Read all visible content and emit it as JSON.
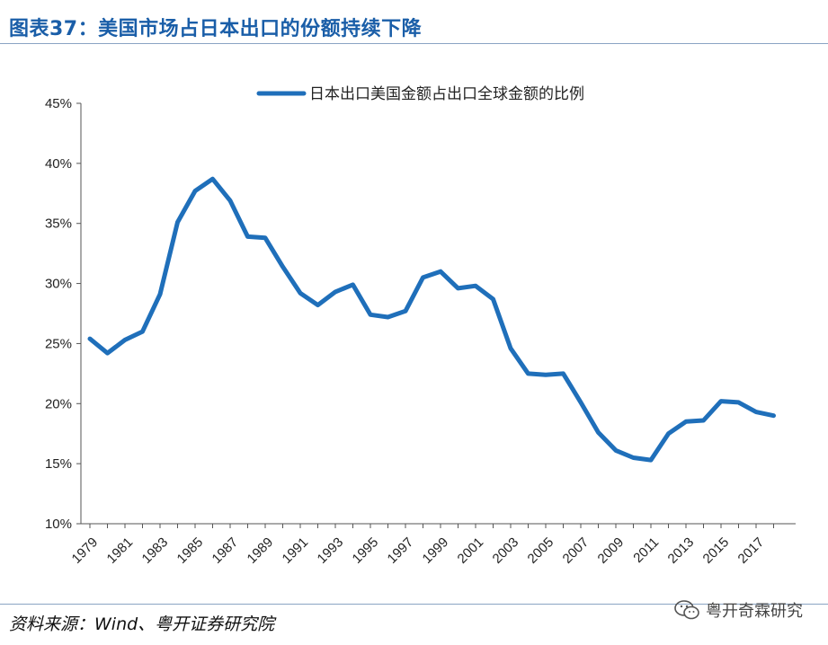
{
  "header": {
    "title": "图表37：美国市场占日本出口的份额持续下降"
  },
  "footer": {
    "source": "资料来源：Wind、粤开证券研究院",
    "watermark": "粤开奇霖研究"
  },
  "chart_data": {
    "type": "line",
    "title": "",
    "xlabel": "",
    "ylabel": "",
    "x": [
      1979,
      1980,
      1981,
      1982,
      1983,
      1984,
      1985,
      1986,
      1987,
      1988,
      1989,
      1990,
      1991,
      1992,
      1993,
      1994,
      1995,
      1996,
      1997,
      1998,
      1999,
      2000,
      2001,
      2002,
      2003,
      2004,
      2005,
      2006,
      2007,
      2008,
      2009,
      2010,
      2011,
      2012,
      2013,
      2014,
      2015,
      2016,
      2017,
      2018
    ],
    "xtick_labels": [
      "1979",
      "1981",
      "1983",
      "1985",
      "1987",
      "1989",
      "1991",
      "1993",
      "1995",
      "1997",
      "1999",
      "2001",
      "2003",
      "2005",
      "2007",
      "2009",
      "2011",
      "2013",
      "2015",
      "2017"
    ],
    "ytick_labels": [
      "10%",
      "15%",
      "20%",
      "25%",
      "30%",
      "35%",
      "40%",
      "45%"
    ],
    "ylim": [
      10,
      45
    ],
    "grid": false,
    "legend_position": "top",
    "series": [
      {
        "name": "日本出口美国金额占出口全球金额的比例",
        "color": "#1f6fba",
        "values": [
          25.4,
          24.2,
          25.3,
          26.0,
          29.1,
          35.1,
          37.7,
          38.7,
          36.9,
          33.9,
          33.8,
          31.4,
          29.2,
          28.2,
          29.3,
          29.9,
          27.4,
          27.2,
          27.7,
          30.5,
          31.0,
          29.6,
          29.8,
          28.7,
          24.6,
          22.5,
          22.4,
          22.5,
          20.1,
          17.6,
          16.1,
          15.5,
          15.3,
          17.5,
          18.5,
          18.6,
          20.2,
          20.1,
          19.3,
          19.0
        ]
      }
    ]
  }
}
